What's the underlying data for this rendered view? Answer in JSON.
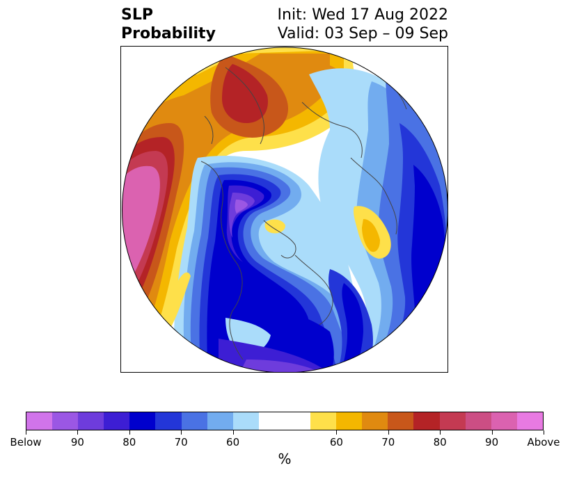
{
  "title": {
    "left_line1": "SLP",
    "left_line2": "Probability",
    "right_line1": "Init: Wed 17 Aug 2022",
    "right_line2": "Valid: 03 Sep – 09 Sep"
  },
  "colorbar": {
    "segments": [
      {
        "color": "#d174ea"
      },
      {
        "color": "#9b57e4"
      },
      {
        "color": "#6e3cdc"
      },
      {
        "color": "#3d1ed4"
      },
      {
        "color": "#0000cd"
      },
      {
        "color": "#2336d8"
      },
      {
        "color": "#4a72e4"
      },
      {
        "color": "#72acef"
      },
      {
        "color": "#aadcfa"
      },
      {
        "color": "#ffffff",
        "wide": true
      },
      {
        "color": "#fee04a"
      },
      {
        "color": "#f4b700"
      },
      {
        "color": "#e08a10"
      },
      {
        "color": "#c8571a"
      },
      {
        "color": "#b42326"
      },
      {
        "color": "#c43a52"
      },
      {
        "color": "#cc4e84"
      },
      {
        "color": "#db62b0"
      },
      {
        "color": "#e87ae2"
      }
    ],
    "tick_labels": [
      "Below",
      "90",
      "80",
      "70",
      "60",
      "60",
      "70",
      "80",
      "90",
      "Above"
    ],
    "units": "%"
  }
}
